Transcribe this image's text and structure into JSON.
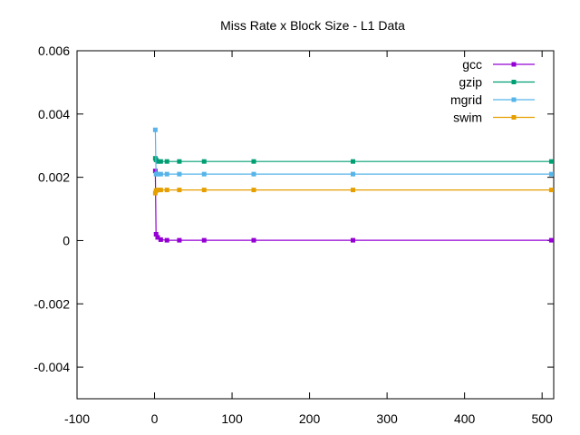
{
  "chart_data": {
    "type": "line",
    "title": "Miss Rate x Block Size - L1 Data",
    "xlabel": "",
    "ylabel": "",
    "xlim": [
      -100,
      515
    ],
    "ylim": [
      -0.005,
      0.006
    ],
    "xticks": [
      -100,
      0,
      100,
      200,
      300,
      400,
      500
    ],
    "yticks": [
      0.006,
      0.004,
      0.002,
      0,
      -0.002,
      -0.004
    ],
    "xtick_labels": [
      "-100",
      "0",
      "100",
      "200",
      "300",
      "400",
      "500"
    ],
    "ytick_labels": [
      "0.006",
      "0.004",
      "0.002",
      "0",
      "-0.002",
      "-0.004"
    ],
    "grid": false,
    "legend_position": "top-right",
    "x": [
      1,
      2,
      4,
      8,
      16,
      32,
      64,
      128,
      256,
      512
    ],
    "series": [
      {
        "name": "gcc",
        "color": "#9400d3",
        "values": [
          0.0022,
          0.0002,
          0.0001,
          3e-05,
          1e-05,
          1e-05,
          1e-05,
          1e-05,
          1e-05,
          1e-05
        ]
      },
      {
        "name": "gzip",
        "color": "#009e73",
        "values": [
          0.0026,
          0.00255,
          0.0025,
          0.0025,
          0.0025,
          0.0025,
          0.0025,
          0.0025,
          0.0025,
          0.0025
        ]
      },
      {
        "name": "mgrid",
        "color": "#56b4e9",
        "values": [
          0.0035,
          0.0021,
          0.0021,
          0.0021,
          0.0021,
          0.0021,
          0.0021,
          0.0021,
          0.0021,
          0.0021
        ]
      },
      {
        "name": "swim",
        "color": "#e69f00",
        "values": [
          0.0015,
          0.00158,
          0.0016,
          0.0016,
          0.0016,
          0.0016,
          0.0016,
          0.0016,
          0.0016,
          0.0016
        ]
      }
    ]
  }
}
